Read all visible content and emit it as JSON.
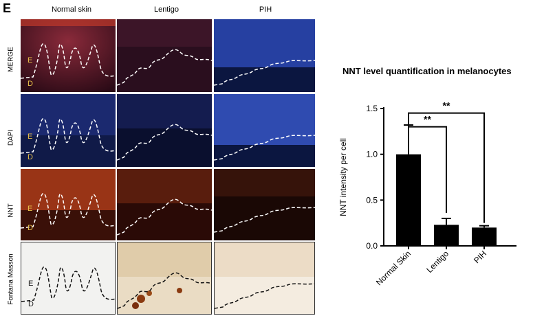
{
  "figure": {
    "panel_letter": "E",
    "columns": [
      "Normal skin",
      "Lentigo",
      "PIH"
    ],
    "rows": [
      "MERGE",
      "DAPI",
      "NNT",
      "Fontana Masson"
    ],
    "region_labels": {
      "epidermis": "E",
      "dermis": "D"
    }
  },
  "chart_data": {
    "type": "bar",
    "title": "NNT level quantification in melanocytes",
    "ylabel": "NNT intensity per cell",
    "xlabel": "",
    "categories": [
      "Normal Skin",
      "Lentigo",
      "PIH"
    ],
    "values": [
      1.0,
      0.23,
      0.2
    ],
    "errors": [
      0.32,
      0.07,
      0.02
    ],
    "ylim": [
      0,
      1.5
    ],
    "yticks": [
      0.0,
      0.5,
      1.0,
      1.5
    ],
    "ytick_labels": [
      "0.0",
      "0.5",
      "1.0",
      "1.5"
    ],
    "bar_color": "#000000",
    "grid": false,
    "annotations": [
      {
        "from": "Normal Skin",
        "to": "Lentigo",
        "text": "**"
      },
      {
        "from": "Normal Skin",
        "to": "PIH",
        "text": "**"
      }
    ]
  }
}
